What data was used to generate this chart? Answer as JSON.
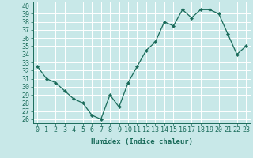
{
  "x": [
    0,
    1,
    2,
    3,
    4,
    5,
    6,
    7,
    8,
    9,
    10,
    11,
    12,
    13,
    14,
    15,
    16,
    17,
    18,
    19,
    20,
    21,
    22,
    23
  ],
  "y": [
    32.5,
    31.0,
    30.5,
    29.5,
    28.5,
    28.0,
    26.5,
    26.0,
    29.0,
    27.5,
    30.5,
    32.5,
    34.5,
    35.5,
    38.0,
    37.5,
    39.5,
    38.5,
    39.5,
    39.5,
    39.0,
    36.5,
    34.0,
    35.0
  ],
  "title": "",
  "xlabel": "Humidex (Indice chaleur)",
  "ylabel": "",
  "ylim": [
    25.5,
    40.5
  ],
  "xlim": [
    -0.5,
    23.5
  ],
  "yticks": [
    26,
    27,
    28,
    29,
    30,
    31,
    32,
    33,
    34,
    35,
    36,
    37,
    38,
    39,
    40
  ],
  "xticks": [
    0,
    1,
    2,
    3,
    4,
    5,
    6,
    7,
    8,
    9,
    10,
    11,
    12,
    13,
    14,
    15,
    16,
    17,
    18,
    19,
    20,
    21,
    22,
    23
  ],
  "line_color": "#1a6b5a",
  "marker_color": "#1a6b5a",
  "bg_color": "#c8e8e8",
  "grid_color": "#ffffff",
  "label_fontsize": 6.5,
  "tick_fontsize": 6.0
}
